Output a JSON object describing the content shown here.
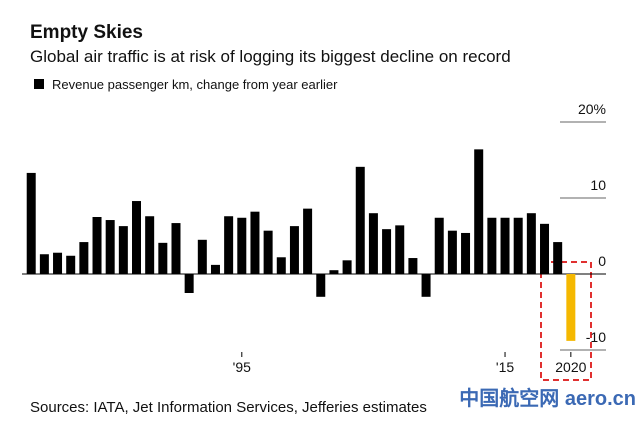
{
  "chart_data": {
    "type": "bar",
    "title": "Empty Skies",
    "subtitle": "Global air traffic is at risk of logging its biggest decline on record",
    "legend": "Revenue passenger km, change from year earlier",
    "source": "Sources: IATA, Jet Information Services, Jefferies estimates",
    "watermark": "中国航空网 aero.cn",
    "x": [
      1979,
      1980,
      1981,
      1982,
      1983,
      1984,
      1985,
      1986,
      1987,
      1988,
      1989,
      1990,
      1991,
      1992,
      1993,
      1994,
      1995,
      1996,
      1997,
      1998,
      1999,
      2000,
      2001,
      2002,
      2003,
      2004,
      2005,
      2006,
      2007,
      2008,
      2009,
      2010,
      2011,
      2012,
      2013,
      2014,
      2015,
      2016,
      2017,
      2018,
      2019,
      2020
    ],
    "values": [
      13.3,
      2.6,
      2.8,
      2.4,
      4.2,
      7.5,
      7.1,
      6.3,
      9.6,
      7.6,
      4.1,
      6.7,
      -2.5,
      4.5,
      1.2,
      7.6,
      7.4,
      8.2,
      5.7,
      2.2,
      6.3,
      8.6,
      -3.0,
      0.5,
      1.8,
      14.1,
      8.0,
      5.9,
      6.4,
      2.1,
      -3.0,
      7.4,
      5.7,
      5.4,
      16.4,
      7.4,
      7.4,
      7.4,
      8.0,
      6.6,
      4.2,
      -8.8
    ],
    "color": "#000000",
    "highlight": {
      "x": 2020,
      "color": "#f5b800"
    },
    "xlim": [
      1978.3,
      2021
    ],
    "xticks": [
      {
        "value": 1995,
        "label": "'95"
      },
      {
        "value": 2015,
        "label": "'15"
      },
      2020
    ],
    "ylim": [
      -11,
      20
    ],
    "yticks": [
      {
        "value": 20,
        "label": "20%"
      },
      10,
      0,
      -10
    ]
  }
}
